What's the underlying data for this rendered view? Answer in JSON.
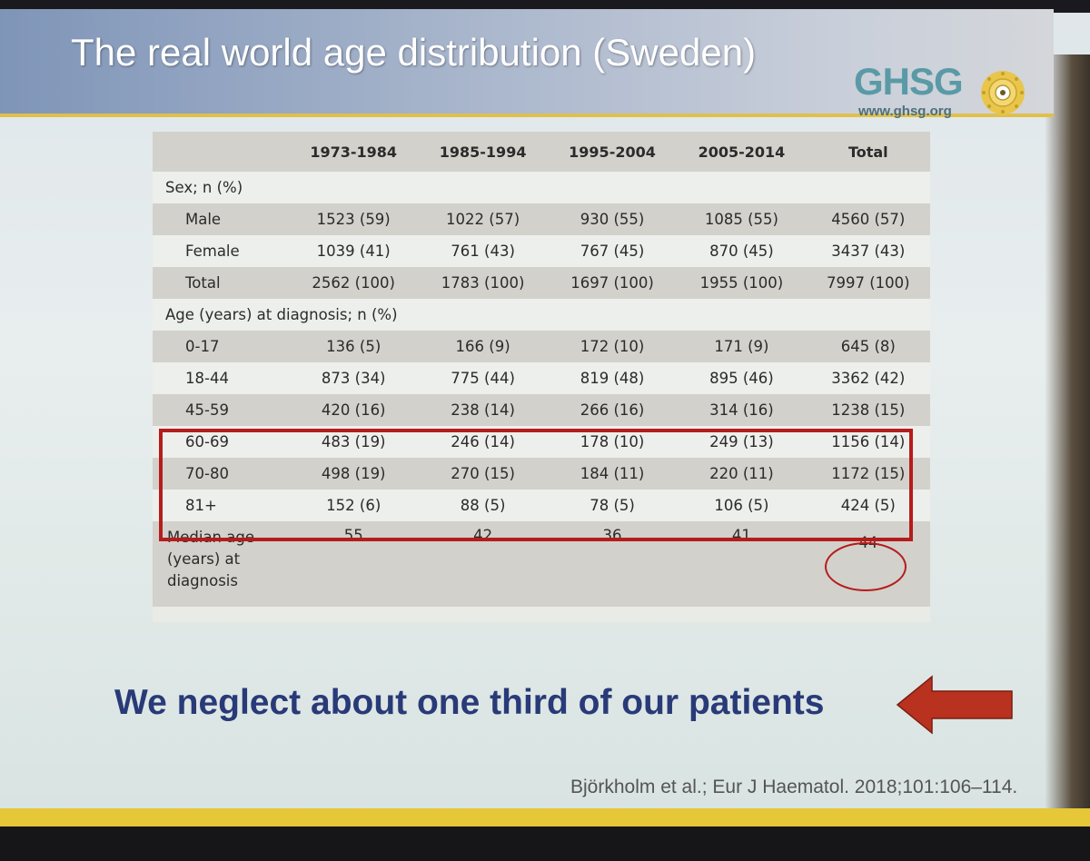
{
  "slide": {
    "title": "The real world age distribution (Sweden)",
    "logo": {
      "name": "GHSG",
      "url": "www.ghsg.org"
    },
    "message": "We neglect about one third of our patients",
    "citation": "Björkholm et al.; Eur J Haematol. 2018;101:106–114."
  },
  "table": {
    "columns": [
      "1973-1984",
      "1985-1994",
      "1995-2004",
      "2005-2014",
      "Total"
    ],
    "sections": [
      {
        "label": "Sex; n (%)",
        "rows": [
          {
            "label": "Male",
            "values": [
              "1523 (59)",
              "1022 (57)",
              "930 (55)",
              "1085 (55)",
              "4560 (57)"
            ]
          },
          {
            "label": "Female",
            "values": [
              "1039 (41)",
              "761 (43)",
              "767 (45)",
              "870 (45)",
              "3437 (43)"
            ]
          },
          {
            "label": "Total",
            "values": [
              "2562 (100)",
              "1783 (100)",
              "1697 (100)",
              "1955 (100)",
              "7997 (100)"
            ]
          }
        ]
      },
      {
        "label": "Age (years) at diagnosis; n (%)",
        "rows": [
          {
            "label": "0-17",
            "values": [
              "136 (5)",
              "166 (9)",
              "172 (10)",
              "171 (9)",
              "645 (8)"
            ]
          },
          {
            "label": "18-44",
            "values": [
              "873 (34)",
              "775 (44)",
              "819 (48)",
              "895 (46)",
              "3362 (42)"
            ]
          },
          {
            "label": "45-59",
            "values": [
              "420 (16)",
              "238 (14)",
              "266 (16)",
              "314 (16)",
              "1238 (15)"
            ]
          },
          {
            "label": "60-69",
            "values": [
              "483 (19)",
              "246 (14)",
              "178 (10)",
              "249 (13)",
              "1156 (14)"
            ]
          },
          {
            "label": "70-80",
            "values": [
              "498 (19)",
              "270 (15)",
              "184 (11)",
              "220 (11)",
              "1172 (15)"
            ]
          },
          {
            "label": "81+",
            "values": [
              "152 (6)",
              "88 (5)",
              "78 (5)",
              "106 (5)",
              "424 (5)"
            ]
          }
        ]
      }
    ],
    "median": {
      "label": "Median age (years) at diagnosis",
      "values": [
        "55",
        "42",
        "36",
        "41",
        "44"
      ]
    }
  },
  "colors": {
    "title_bar": "#8fa0be",
    "highlight_red": "#b51c1c",
    "message_blue": "#293a78",
    "accent_yellow": "#e5c737",
    "logo_teal": "#5a9aa6"
  }
}
